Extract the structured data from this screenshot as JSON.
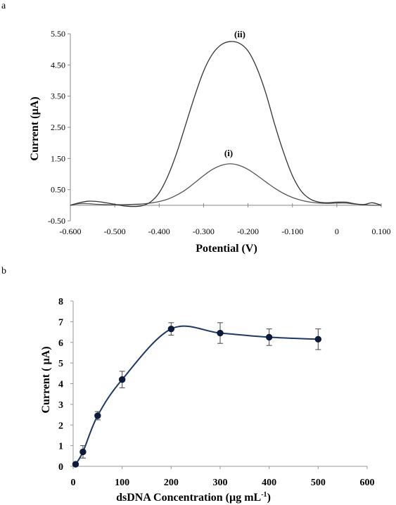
{
  "chart_data": [
    {
      "panel_label": "a",
      "type": "line",
      "xlabel": "Potential (V)",
      "ylabel": "Current (µA)",
      "xlim": [
        -0.6,
        0.1
      ],
      "ylim": [
        -0.5,
        5.5
      ],
      "xticks": [
        "-0.600",
        "-0.500",
        "-0.400",
        "-0.300",
        "-0.200",
        "-0.100",
        "0",
        "0.100"
      ],
      "yticks": [
        "-0.50",
        "0.50",
        "1.50",
        "2.50",
        "3.50",
        "4.50",
        "5.50"
      ],
      "grid": false,
      "series": [
        {
          "name": "(i)",
          "color": "#555555",
          "x": [
            -0.6,
            -0.58,
            -0.56,
            -0.54,
            -0.52,
            -0.5,
            -0.48,
            -0.46,
            -0.44,
            -0.42,
            -0.4,
            -0.38,
            -0.36,
            -0.34,
            -0.32,
            -0.3,
            -0.28,
            -0.26,
            -0.24,
            -0.22,
            -0.2,
            -0.18,
            -0.16,
            -0.14,
            -0.12,
            -0.1,
            -0.08,
            -0.06,
            -0.04,
            -0.02,
            0.0,
            0.02,
            0.04,
            0.06,
            0.08,
            0.1
          ],
          "y": [
            0.0,
            0.05,
            0.05,
            0.03,
            0.02,
            0.02,
            0.02,
            0.03,
            0.04,
            0.07,
            0.12,
            0.2,
            0.33,
            0.5,
            0.72,
            0.95,
            1.15,
            1.28,
            1.33,
            1.28,
            1.15,
            0.96,
            0.75,
            0.55,
            0.38,
            0.25,
            0.16,
            0.1,
            0.07,
            0.06,
            0.07,
            0.07,
            0.04,
            0.02,
            0.0,
            0.0
          ]
        },
        {
          "name": "(ii)",
          "color": "#333333",
          "x": [
            -0.6,
            -0.58,
            -0.56,
            -0.54,
            -0.52,
            -0.5,
            -0.48,
            -0.46,
            -0.44,
            -0.42,
            -0.4,
            -0.38,
            -0.36,
            -0.34,
            -0.32,
            -0.3,
            -0.28,
            -0.26,
            -0.24,
            -0.22,
            -0.2,
            -0.18,
            -0.16,
            -0.14,
            -0.12,
            -0.1,
            -0.08,
            -0.06,
            -0.04,
            -0.02,
            0.0,
            0.02,
            0.04,
            0.06,
            0.08,
            0.1
          ],
          "y": [
            0.0,
            0.08,
            0.13,
            0.12,
            0.08,
            0.03,
            -0.02,
            -0.04,
            -0.02,
            0.1,
            0.4,
            0.95,
            1.7,
            2.6,
            3.5,
            4.3,
            4.85,
            5.15,
            5.25,
            5.2,
            4.95,
            4.4,
            3.6,
            2.6,
            1.7,
            0.95,
            0.45,
            0.2,
            0.1,
            0.08,
            0.1,
            0.1,
            0.05,
            0.02,
            0.08,
            0.0
          ]
        }
      ]
    },
    {
      "panel_label": "b",
      "type": "scatter",
      "xlabel": "dsDNA Concentration  (µg mL",
      "xlabel_sup": "-1",
      "xlabel_end": ")",
      "ylabel": "Current ( µA)",
      "xlim": [
        0,
        600
      ],
      "ylim": [
        0,
        8
      ],
      "xticks": [
        "0",
        "100",
        "200",
        "300",
        "400",
        "500",
        "600"
      ],
      "yticks": [
        "0",
        "1",
        "2",
        "3",
        "4",
        "5",
        "6",
        "7",
        "8"
      ],
      "grid": false,
      "series": [
        {
          "color": "#1f3864",
          "x": [
            5,
            20,
            50,
            100,
            200,
            300,
            400,
            500
          ],
          "y": [
            0.1,
            0.7,
            2.45,
            4.2,
            6.65,
            6.45,
            6.25,
            6.15
          ],
          "error": [
            0.0,
            0.3,
            0.2,
            0.4,
            0.3,
            0.5,
            0.4,
            0.5
          ]
        }
      ]
    }
  ]
}
